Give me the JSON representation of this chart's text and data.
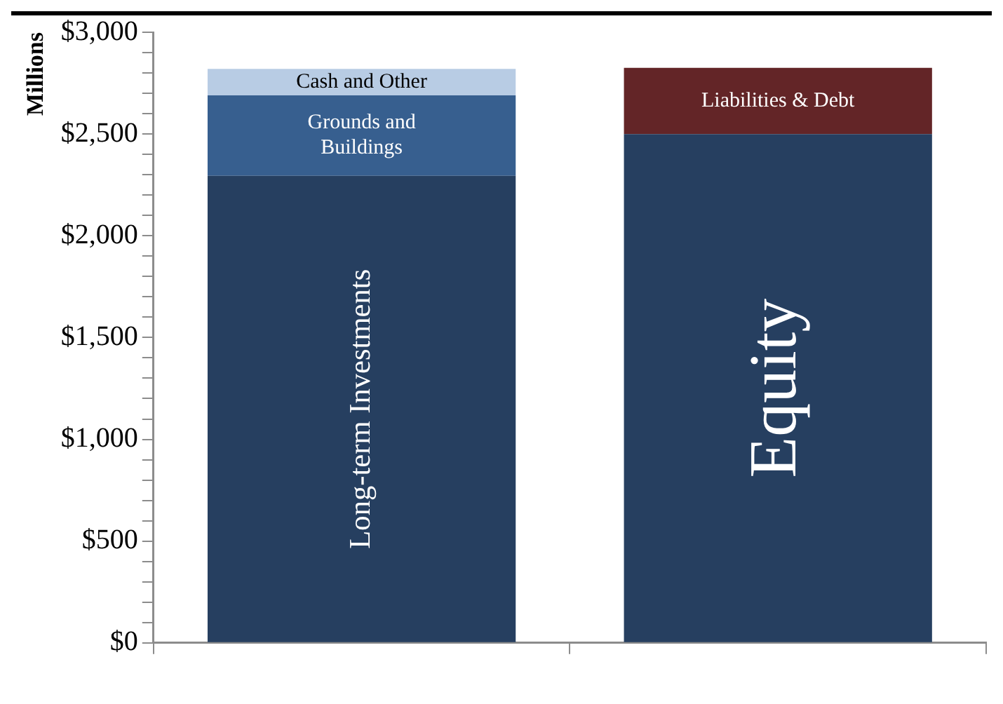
{
  "chart_data": {
    "type": "bar",
    "stacked": true,
    "ylabel": "Millions",
    "categories": [
      null,
      null
    ],
    "series": [
      {
        "name": "Long-term Investments",
        "color": "#263f60",
        "values": [
          2295,
          null
        ]
      },
      {
        "name": "Grounds and Buildings",
        "color": "#375f8f",
        "values": [
          395,
          null
        ]
      },
      {
        "name": "Cash and Other",
        "color": "#b8cce4",
        "values": [
          130,
          null
        ]
      },
      {
        "name": "Equity",
        "color": "#263f60",
        "values": [
          null,
          2500
        ]
      },
      {
        "name": "Liabilities & Debt",
        "color": "#632527",
        "values": [
          null,
          325
        ]
      }
    ],
    "ylim": [
      0,
      3000
    ],
    "yticks": [
      {
        "value": 0,
        "label": "$0"
      },
      {
        "value": 100,
        "label": null
      },
      {
        "value": 200,
        "label": null
      },
      {
        "value": 300,
        "label": null
      },
      {
        "value": 400,
        "label": null
      },
      {
        "value": 500,
        "label": "$500"
      },
      {
        "value": 600,
        "label": null
      },
      {
        "value": 700,
        "label": null
      },
      {
        "value": 800,
        "label": null
      },
      {
        "value": 900,
        "label": null
      },
      {
        "value": 1000,
        "label": "$1,000"
      },
      {
        "value": 1100,
        "label": null
      },
      {
        "value": 1200,
        "label": null
      },
      {
        "value": 1300,
        "label": null
      },
      {
        "value": 1400,
        "label": null
      },
      {
        "value": 1500,
        "label": "$1,500"
      },
      {
        "value": 1600,
        "label": null
      },
      {
        "value": 1700,
        "label": null
      },
      {
        "value": 1800,
        "label": null
      },
      {
        "value": 1900,
        "label": null
      },
      {
        "value": 2000,
        "label": "$2,000"
      },
      {
        "value": 2100,
        "label": null
      },
      {
        "value": 2200,
        "label": null
      },
      {
        "value": 2300,
        "label": null
      },
      {
        "value": 2400,
        "label": null
      },
      {
        "value": 2500,
        "label": "$2,500"
      },
      {
        "value": 2600,
        "label": null
      },
      {
        "value": 2700,
        "label": null
      },
      {
        "value": 2800,
        "label": null
      },
      {
        "value": 2900,
        "label": null
      },
      {
        "value": 3000,
        "label": "$3,000"
      }
    ],
    "grid": false,
    "legend": false
  }
}
